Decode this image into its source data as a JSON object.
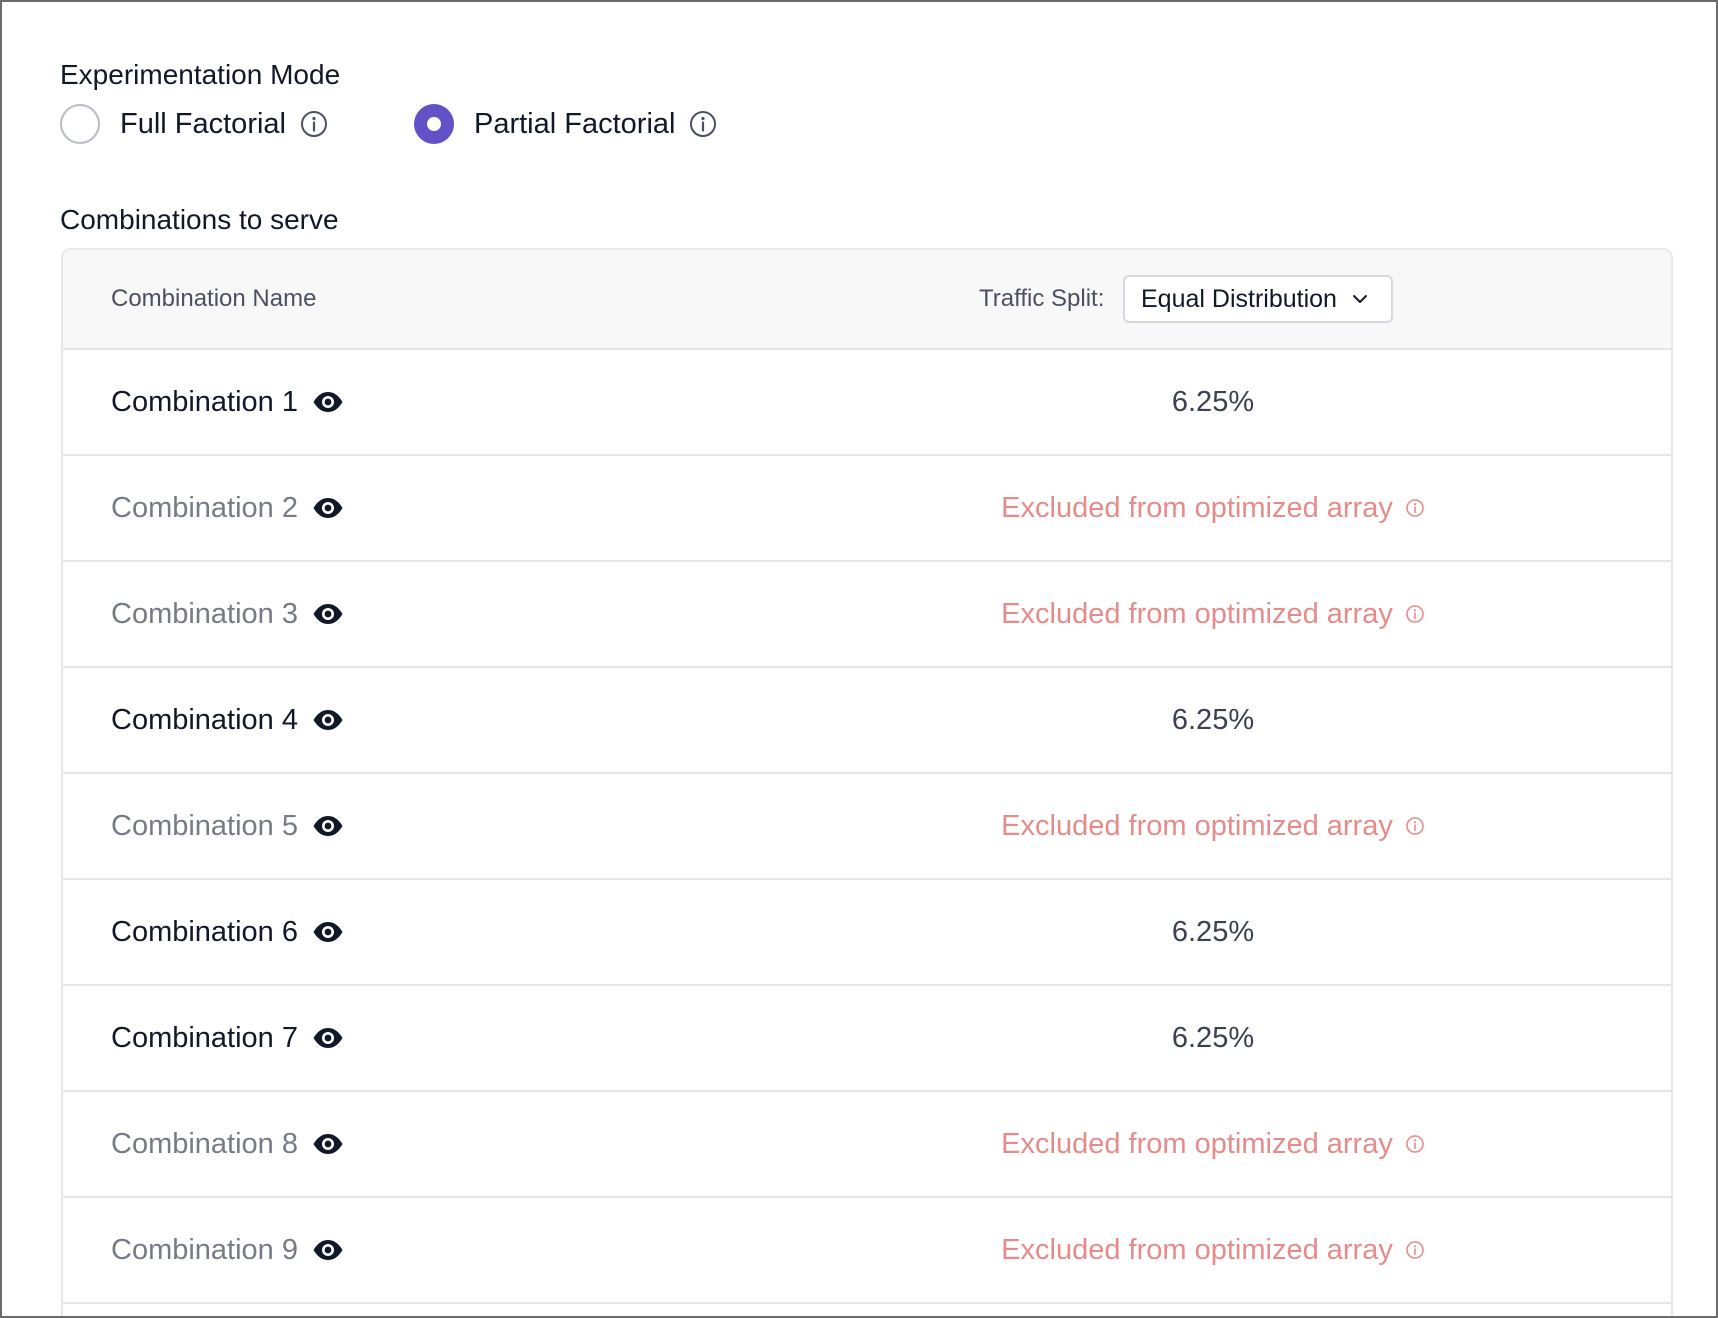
{
  "experimentation_mode": {
    "title": "Experimentation Mode",
    "options": [
      {
        "label": "Full Factorial",
        "selected": false
      },
      {
        "label": "Partial Factorial",
        "selected": true
      }
    ]
  },
  "combinations": {
    "title": "Combinations to serve",
    "header": {
      "name_column": "Combination Name",
      "traffic_split_label": "Traffic Split:",
      "traffic_split_value": "Equal Distribution"
    },
    "rows": [
      {
        "name": "Combination 1",
        "value": "6.25%",
        "excluded": false
      },
      {
        "name": "Combination 2",
        "value": "Excluded from optimized array",
        "excluded": true
      },
      {
        "name": "Combination 3",
        "value": "Excluded from optimized array",
        "excluded": true
      },
      {
        "name": "Combination 4",
        "value": "6.25%",
        "excluded": false
      },
      {
        "name": "Combination 5",
        "value": "Excluded from optimized array",
        "excluded": true
      },
      {
        "name": "Combination 6",
        "value": "6.25%",
        "excluded": false
      },
      {
        "name": "Combination 7",
        "value": "6.25%",
        "excluded": false
      },
      {
        "name": "Combination 8",
        "value": "Excluded from optimized array",
        "excluded": true
      },
      {
        "name": "Combination 9",
        "value": "Excluded from optimized array",
        "excluded": true
      }
    ]
  },
  "colors": {
    "accent": "#6251c7",
    "excluded_text": "#e58c8a",
    "muted_text": "#767b86",
    "border": "#e3e5e9"
  }
}
